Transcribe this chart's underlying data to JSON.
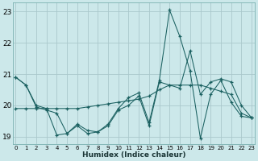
{
  "xlabel": "Humidex (Indice chaleur)",
  "background_color": "#cce8ea",
  "grid_color": "#aac8cc",
  "line_color": "#1a6060",
  "hours": [
    0,
    1,
    2,
    3,
    4,
    5,
    6,
    7,
    8,
    9,
    10,
    11,
    12,
    13,
    14,
    15,
    16,
    17,
    18,
    19,
    20,
    21,
    22,
    23
  ],
  "series1": [
    20.9,
    20.65,
    20.0,
    19.9,
    19.05,
    19.1,
    19.4,
    19.2,
    19.15,
    19.4,
    19.9,
    20.25,
    20.4,
    19.45,
    20.8,
    23.05,
    22.2,
    21.1,
    18.95,
    20.35,
    20.8,
    20.1,
    19.65,
    19.6
  ],
  "series2": [
    19.9,
    19.9,
    19.9,
    19.9,
    19.9,
    19.9,
    19.9,
    19.95,
    20.0,
    20.05,
    20.1,
    20.15,
    20.2,
    20.3,
    20.5,
    20.65,
    20.65,
    20.65,
    20.65,
    20.55,
    20.45,
    20.35,
    19.75,
    19.6
  ],
  "series3": [
    20.9,
    20.65,
    19.95,
    19.85,
    19.75,
    19.1,
    19.35,
    19.1,
    19.15,
    19.35,
    19.85,
    20.0,
    20.3,
    19.35,
    20.75,
    20.65,
    20.55,
    21.75,
    20.35,
    20.75,
    20.85,
    20.75,
    20.0,
    19.6
  ],
  "ylim": [
    18.75,
    23.3
  ],
  "yticks": [
    19,
    20,
    21,
    22,
    23
  ],
  "xlim": [
    -0.3,
    23.3
  ]
}
